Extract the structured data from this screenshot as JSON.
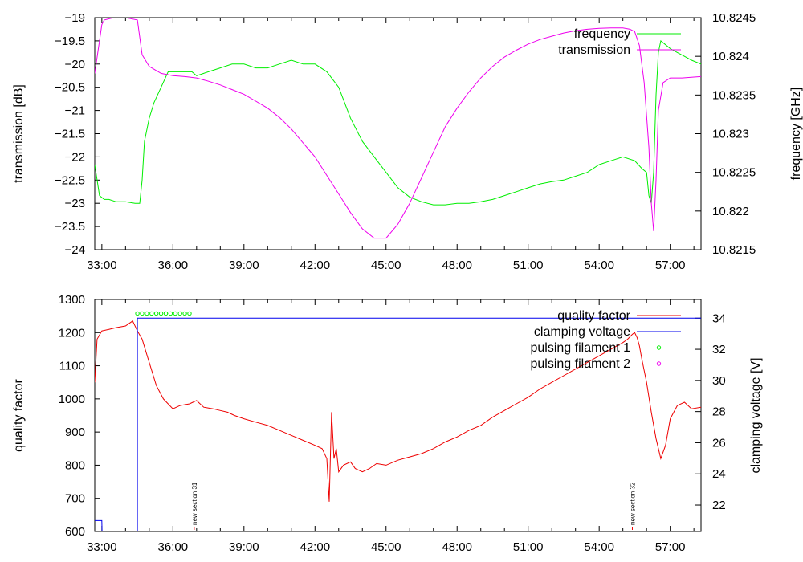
{
  "chart_data": [
    {
      "type": "line",
      "xlabel": "",
      "ylabel": "transmission [dB]",
      "y2label": "frequency [GHz]",
      "xlim": [
        32.7,
        58.3
      ],
      "ylim": [
        -24,
        -19
      ],
      "y2lim": [
        10.8215,
        10.8245
      ],
      "xticks": [
        33,
        36,
        39,
        42,
        45,
        48,
        51,
        54,
        57
      ],
      "xtick_labels": [
        "33:00",
        "36:00",
        "39:00",
        "42:00",
        "45:00",
        "48:00",
        "51:00",
        "54:00",
        "57:00"
      ],
      "yticks": [
        -19,
        -19.5,
        -20,
        -20.5,
        -21,
        -21.5,
        -22,
        -22.5,
        -23,
        -23.5,
        -24
      ],
      "ytick_labels": [
        "−19",
        "−19.5",
        "−20",
        "−20.5",
        "−21",
        "−21.5",
        "−22",
        "−22.5",
        "−23",
        "−23.5",
        "−24"
      ],
      "y2ticks": [
        10.8245,
        10.824,
        10.8235,
        10.823,
        10.8225,
        10.822,
        10.8215
      ],
      "y2tick_labels": [
        "10.8245",
        "10.824",
        "10.8235",
        "10.823",
        "10.8225",
        "10.822",
        "10.8215"
      ],
      "legend_position": "top-right",
      "series": [
        {
          "name": "frequency",
          "axis": "y2",
          "color": "#00ee00",
          "x": [
            32.7,
            32.9,
            33.1,
            33.3,
            33.6,
            34.0,
            34.4,
            34.6,
            34.7,
            34.8,
            35.0,
            35.2,
            35.5,
            35.8,
            36.2,
            36.5,
            36.8,
            37.0,
            37.5,
            38.0,
            38.5,
            39.0,
            39.5,
            40.0,
            40.5,
            41.0,
            41.5,
            42.0,
            42.5,
            43.0,
            43.5,
            44.0,
            44.5,
            45.0,
            45.5,
            46.0,
            46.5,
            47.0,
            47.5,
            48.0,
            48.5,
            49.0,
            49.5,
            50.0,
            50.5,
            51.0,
            51.5,
            52.0,
            52.5,
            53.0,
            53.5,
            54.0,
            54.5,
            55.0,
            55.5,
            55.8,
            56.0,
            56.1,
            56.2,
            56.3,
            56.4,
            56.5,
            56.6,
            56.8,
            57.0,
            57.3,
            57.6,
            57.9,
            58.3
          ],
          "y": [
            10.8226,
            10.8222,
            10.82215,
            10.82215,
            10.82212,
            10.82212,
            10.8221,
            10.8221,
            10.8224,
            10.8229,
            10.8232,
            10.8234,
            10.8236,
            10.8238,
            10.8238,
            10.8238,
            10.8238,
            10.82375,
            10.8238,
            10.82385,
            10.8239,
            10.8239,
            10.82385,
            10.82385,
            10.8239,
            10.82395,
            10.8239,
            10.8239,
            10.8238,
            10.8236,
            10.8232,
            10.8229,
            10.8227,
            10.8225,
            10.8223,
            10.82218,
            10.82212,
            10.82208,
            10.82208,
            10.8221,
            10.8221,
            10.82212,
            10.82215,
            10.8222,
            10.82225,
            10.8223,
            10.82235,
            10.82238,
            10.8224,
            10.82245,
            10.8225,
            10.8226,
            10.82265,
            10.8227,
            10.82265,
            10.82255,
            10.8225,
            10.8222,
            10.8221,
            10.8225,
            10.8235,
            10.82405,
            10.8242,
            10.82415,
            10.8241,
            10.82405,
            10.824,
            10.82395,
            10.8239
          ]
        },
        {
          "name": "transmission",
          "axis": "y",
          "color": "#ee00ee",
          "x": [
            32.7,
            32.9,
            33.0,
            33.1,
            33.5,
            34.0,
            34.5,
            34.7,
            35.0,
            35.5,
            36.0,
            36.5,
            37.0,
            37.5,
            38.0,
            38.5,
            39.0,
            39.5,
            40.0,
            40.5,
            41.0,
            41.5,
            42.0,
            42.5,
            43.0,
            43.5,
            44.0,
            44.5,
            45.0,
            45.5,
            46.0,
            46.5,
            47.0,
            47.5,
            48.0,
            48.5,
            49.0,
            49.5,
            50.0,
            50.5,
            51.0,
            51.5,
            52.0,
            52.5,
            53.0,
            53.5,
            54.0,
            54.5,
            55.0,
            55.3,
            55.5,
            55.7,
            55.9,
            56.1,
            56.2,
            56.3,
            56.4,
            56.5,
            56.7,
            57.0,
            57.5,
            58.0,
            58.3
          ],
          "y": [
            -20.2,
            -19.5,
            -19.15,
            -19.05,
            -19.0,
            -19.0,
            -19.05,
            -19.8,
            -20.05,
            -20.2,
            -20.25,
            -20.27,
            -20.3,
            -20.37,
            -20.45,
            -20.55,
            -20.65,
            -20.8,
            -20.95,
            -21.15,
            -21.4,
            -21.7,
            -22.0,
            -22.4,
            -22.8,
            -23.2,
            -23.55,
            -23.75,
            -23.75,
            -23.45,
            -23.0,
            -22.45,
            -21.9,
            -21.35,
            -20.95,
            -20.6,
            -20.3,
            -20.05,
            -19.85,
            -19.7,
            -19.57,
            -19.47,
            -19.4,
            -19.33,
            -19.28,
            -19.25,
            -19.23,
            -19.22,
            -19.22,
            -19.25,
            -19.3,
            -19.6,
            -20.4,
            -21.8,
            -23.0,
            -23.6,
            -22.5,
            -21.0,
            -20.4,
            -20.3,
            -20.3,
            -20.28,
            -20.27
          ]
        }
      ]
    },
    {
      "type": "line",
      "xlabel": "",
      "ylabel": "quality factor",
      "y2label": "clamping voltage [V]",
      "xlim": [
        32.7,
        58.3
      ],
      "ylim": [
        600,
        1300
      ],
      "y2lim": [
        20.3,
        35.2
      ],
      "xticks": [
        33,
        36,
        39,
        42,
        45,
        48,
        51,
        54,
        57
      ],
      "xtick_labels": [
        "33:00",
        "36:00",
        "39:00",
        "42:00",
        "45:00",
        "48:00",
        "51:00",
        "54:00",
        "57:00"
      ],
      "yticks": [
        1300,
        1200,
        1100,
        1000,
        900,
        800,
        700,
        600
      ],
      "ytick_labels": [
        "1300",
        "1200",
        "1100",
        "1000",
        "900",
        "800",
        "700",
        "600"
      ],
      "y2ticks": [
        34,
        32,
        30,
        28,
        26,
        24,
        22
      ],
      "y2tick_labels": [
        "34",
        "32",
        "30",
        "28",
        "26",
        "24",
        "22"
      ],
      "legend_position": "top-right",
      "annotations": [
        {
          "text": "new section 31",
          "x": 36.9
        },
        {
          "text": "new section 32",
          "x": 55.4
        }
      ],
      "series": [
        {
          "name": "quality factor",
          "axis": "y",
          "color": "#ee0000",
          "x": [
            32.7,
            32.8,
            33.0,
            33.3,
            33.6,
            34.0,
            34.3,
            34.5,
            34.7,
            35.0,
            35.3,
            35.6,
            36.0,
            36.3,
            36.7,
            37.0,
            37.3,
            37.7,
            38.0,
            38.3,
            38.6,
            39.0,
            39.5,
            40.0,
            40.5,
            41.0,
            41.5,
            42.0,
            42.3,
            42.5,
            42.6,
            42.7,
            42.8,
            42.9,
            43.0,
            43.2,
            43.5,
            43.7,
            44.0,
            44.3,
            44.6,
            45.0,
            45.5,
            46.0,
            46.5,
            47.0,
            47.5,
            48.0,
            48.5,
            49.0,
            49.5,
            50.0,
            50.5,
            51.0,
            51.5,
            52.0,
            52.5,
            53.0,
            53.5,
            54.0,
            54.5,
            55.0,
            55.2,
            55.4,
            55.5,
            55.6,
            55.7,
            55.8,
            56.0,
            56.2,
            56.4,
            56.6,
            56.8,
            57.0,
            57.3,
            57.6,
            57.9,
            58.3
          ],
          "y": [
            1050,
            1180,
            1205,
            1210,
            1215,
            1220,
            1235,
            1205,
            1180,
            1110,
            1040,
            1000,
            970,
            980,
            985,
            995,
            975,
            970,
            965,
            960,
            950,
            940,
            930,
            920,
            905,
            890,
            875,
            860,
            850,
            820,
            690,
            960,
            820,
            850,
            780,
            800,
            810,
            790,
            780,
            790,
            805,
            800,
            815,
            825,
            835,
            850,
            870,
            885,
            905,
            920,
            945,
            965,
            985,
            1005,
            1030,
            1050,
            1070,
            1090,
            1110,
            1130,
            1150,
            1170,
            1180,
            1195,
            1200,
            1185,
            1160,
            1120,
            1050,
            960,
            880,
            820,
            860,
            940,
            980,
            990,
            970,
            975
          ]
        },
        {
          "name": "clamping voltage",
          "axis": "y2",
          "color": "#0000ee",
          "x": [
            32.7,
            33.0,
            33.01,
            34.49,
            34.5,
            34.5,
            58.3
          ],
          "y": [
            21.0,
            21.0,
            20.3,
            20.3,
            20.3,
            34.0,
            34.0
          ]
        },
        {
          "name": "pulsing filament 1",
          "axis": "y2",
          "color": "#00ee00",
          "marker": "circle",
          "x": [
            34.5,
            34.7,
            34.9,
            35.1,
            35.3,
            35.5,
            35.7,
            35.9,
            36.1,
            36.3,
            36.5,
            36.7
          ],
          "y": [
            34.3,
            34.3,
            34.3,
            34.3,
            34.3,
            34.3,
            34.3,
            34.3,
            34.3,
            34.3,
            34.3,
            34.3
          ]
        },
        {
          "name": "pulsing filament 2",
          "axis": "y2",
          "color": "#ee00ee",
          "marker": "circle",
          "x": [],
          "y": []
        }
      ]
    }
  ]
}
